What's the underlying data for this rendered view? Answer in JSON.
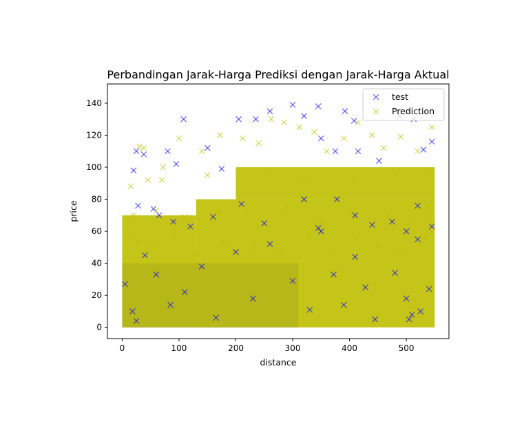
{
  "chart_data": {
    "type": "scatter",
    "title": "Perbandingan Jarak-Harga Prediksi dengan Jarak-Harga Aktual",
    "xlabel": "distance",
    "ylabel": "price",
    "xlim": [
      -26,
      575
    ],
    "ylim": [
      -7,
      152
    ],
    "xticks": [
      0,
      100,
      200,
      300,
      400,
      500
    ],
    "yticks": [
      0,
      20,
      40,
      60,
      80,
      100,
      120,
      140
    ],
    "marker": "x",
    "legend_position": "top-right",
    "grid": false,
    "series": [
      {
        "name": "test",
        "color": "#0000ff",
        "alpha": 0.5,
        "points": [
          [
            5,
            27
          ],
          [
            18,
            10
          ],
          [
            25,
            4
          ],
          [
            40,
            45
          ],
          [
            60,
            33
          ],
          [
            85,
            14
          ],
          [
            110,
            22
          ],
          [
            140,
            38
          ],
          [
            165,
            6
          ],
          [
            200,
            47
          ],
          [
            230,
            18
          ],
          [
            260,
            52
          ],
          [
            300,
            29
          ],
          [
            330,
            11
          ],
          [
            350,
            60
          ],
          [
            372,
            33
          ],
          [
            390,
            14
          ],
          [
            410,
            44
          ],
          [
            428,
            25
          ],
          [
            445,
            5
          ],
          [
            480,
            34
          ],
          [
            500,
            18
          ],
          [
            520,
            55
          ],
          [
            540,
            24
          ],
          [
            25,
            110
          ],
          [
            38,
            108
          ],
          [
            20,
            98
          ],
          [
            80,
            110
          ],
          [
            95,
            102
          ],
          [
            108,
            130
          ],
          [
            150,
            112
          ],
          [
            175,
            99
          ],
          [
            205,
            130
          ],
          [
            235,
            130
          ],
          [
            260,
            135
          ],
          [
            300,
            139
          ],
          [
            320,
            132
          ],
          [
            345,
            138
          ],
          [
            350,
            118
          ],
          [
            375,
            110
          ],
          [
            392,
            135
          ],
          [
            408,
            129
          ],
          [
            415,
            110
          ],
          [
            452,
            104
          ],
          [
            488,
            132
          ],
          [
            505,
            135
          ],
          [
            513,
            130
          ],
          [
            530,
            111
          ],
          [
            545,
            116
          ],
          [
            28,
            76
          ],
          [
            55,
            74
          ],
          [
            65,
            70
          ],
          [
            90,
            66
          ],
          [
            120,
            63
          ],
          [
            160,
            69
          ],
          [
            210,
            77
          ],
          [
            250,
            65
          ],
          [
            320,
            80
          ],
          [
            345,
            62
          ],
          [
            378,
            80
          ],
          [
            410,
            70
          ],
          [
            440,
            64
          ],
          [
            475,
            66
          ],
          [
            500,
            60
          ],
          [
            520,
            76
          ],
          [
            545,
            63
          ],
          [
            505,
            5
          ],
          [
            510,
            8
          ],
          [
            525,
            10
          ]
        ]
      },
      {
        "name": "Prediction",
        "color": "#bfbf00",
        "alpha": 0.5,
        "points": [
          [
            30,
            113
          ],
          [
            38,
            112
          ],
          [
            45,
            92
          ],
          [
            72,
            100
          ],
          [
            100,
            118
          ],
          [
            140,
            110
          ],
          [
            172,
            120
          ],
          [
            212,
            118
          ],
          [
            240,
            115
          ],
          [
            262,
            130
          ],
          [
            285,
            128
          ],
          [
            312,
            125
          ],
          [
            338,
            122
          ],
          [
            360,
            110
          ],
          [
            390,
            118
          ],
          [
            415,
            128
          ],
          [
            440,
            120
          ],
          [
            460,
            112
          ],
          [
            490,
            119
          ],
          [
            520,
            110
          ],
          [
            545,
            125
          ],
          [
            10,
            55
          ],
          [
            28,
            53
          ],
          [
            52,
            50
          ],
          [
            90,
            57
          ],
          [
            130,
            46
          ],
          [
            180,
            54
          ],
          [
            230,
            50
          ],
          [
            280,
            47
          ],
          [
            330,
            58
          ],
          [
            370,
            48
          ],
          [
            410,
            56
          ],
          [
            450,
            51
          ],
          [
            490,
            48
          ],
          [
            530,
            55
          ],
          [
            20,
            70
          ],
          [
            60,
            73
          ],
          [
            110,
            69
          ],
          [
            170,
            72
          ],
          [
            220,
            70
          ],
          [
            290,
            75
          ],
          [
            350,
            66
          ],
          [
            400,
            72
          ],
          [
            470,
            70
          ],
          [
            510,
            68
          ],
          [
            540,
            75
          ],
          [
            15,
            88
          ],
          [
            70,
            92
          ],
          [
            150,
            95
          ],
          [
            260,
            95
          ],
          [
            320,
            90
          ],
          [
            410,
            92
          ],
          [
            480,
            96
          ],
          [
            540,
            98
          ]
        ]
      }
    ],
    "bands": [
      {
        "name": "test",
        "color": "#0000ff",
        "x": [
          0,
          310
        ],
        "y": [
          0,
          40
        ]
      },
      {
        "name": "Prediction",
        "color": "#bfbf00",
        "x": [
          0,
          550
        ],
        "y": [
          0,
          45
        ]
      },
      {
        "name": "Prediction",
        "color": "#bfbf00",
        "x": [
          130,
          550
        ],
        "y": [
          45,
          80
        ]
      },
      {
        "name": "Prediction",
        "color": "#bfbf00",
        "x": [
          0,
          130
        ],
        "y": [
          45,
          70
        ]
      },
      {
        "name": "Prediction",
        "color": "#bfbf00",
        "x": [
          200,
          550
        ],
        "y": [
          80,
          100
        ]
      }
    ]
  }
}
